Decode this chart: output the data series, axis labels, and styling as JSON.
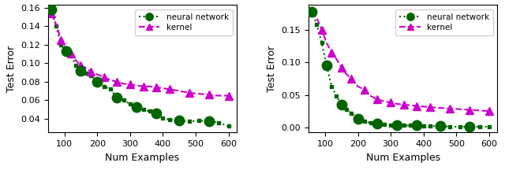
{
  "x_values": [
    60,
    75,
    90,
    105,
    120,
    135,
    150,
    165,
    180,
    200,
    220,
    240,
    260,
    280,
    300,
    320,
    340,
    360,
    380,
    400,
    420,
    450,
    480,
    510,
    540,
    570,
    600
  ],
  "plot1_nn": [
    0.158,
    0.14,
    0.12,
    0.113,
    0.108,
    0.098,
    0.092,
    0.089,
    0.087,
    0.08,
    0.075,
    0.072,
    0.063,
    0.06,
    0.056,
    0.053,
    0.05,
    0.048,
    0.046,
    0.041,
    0.039,
    0.038,
    0.037,
    0.038,
    0.037,
    0.036,
    0.032
  ],
  "plot1_kernel": [
    0.154,
    0.142,
    0.125,
    0.116,
    0.111,
    0.103,
    0.098,
    0.095,
    0.091,
    0.088,
    0.085,
    0.082,
    0.08,
    0.078,
    0.077,
    0.076,
    0.075,
    0.075,
    0.074,
    0.073,
    0.072,
    0.07,
    0.068,
    0.067,
    0.066,
    0.065,
    0.065
  ],
  "plot2_nn": [
    0.178,
    0.158,
    0.13,
    0.095,
    0.063,
    0.048,
    0.035,
    0.028,
    0.022,
    0.013,
    0.009,
    0.007,
    0.006,
    0.005,
    0.004,
    0.004,
    0.003,
    0.003,
    0.003,
    0.002,
    0.002,
    0.002,
    0.001,
    0.001,
    0.001,
    0.001,
    0.001
  ],
  "plot2_kernel": [
    0.178,
    0.168,
    0.15,
    0.13,
    0.115,
    0.105,
    0.092,
    0.082,
    0.075,
    0.063,
    0.058,
    0.048,
    0.043,
    0.04,
    0.038,
    0.036,
    0.035,
    0.034,
    0.033,
    0.032,
    0.031,
    0.03,
    0.029,
    0.028,
    0.027,
    0.026,
    0.025
  ],
  "nn_color": "#006400",
  "kernel_color": "#cc00cc",
  "nn_label": "neural network",
  "kernel_label": "kernel",
  "xlabel": "Num Examples",
  "ylabel": "Test Error",
  "plot1_ylim": [
    0.025,
    0.163
  ],
  "plot2_ylim": [
    -0.008,
    0.188
  ],
  "plot1_yticks": [
    0.04,
    0.06,
    0.08,
    0.1,
    0.12,
    0.14,
    0.16
  ],
  "plot2_yticks": [
    0.0,
    0.05,
    0.1,
    0.15
  ],
  "xticks": [
    100,
    200,
    300,
    400,
    500,
    600
  ],
  "large_circle_every": 3,
  "large_circle_ms": 9,
  "small_dot_ms": 3,
  "triangle_ms": 7,
  "line_width": 1.5
}
